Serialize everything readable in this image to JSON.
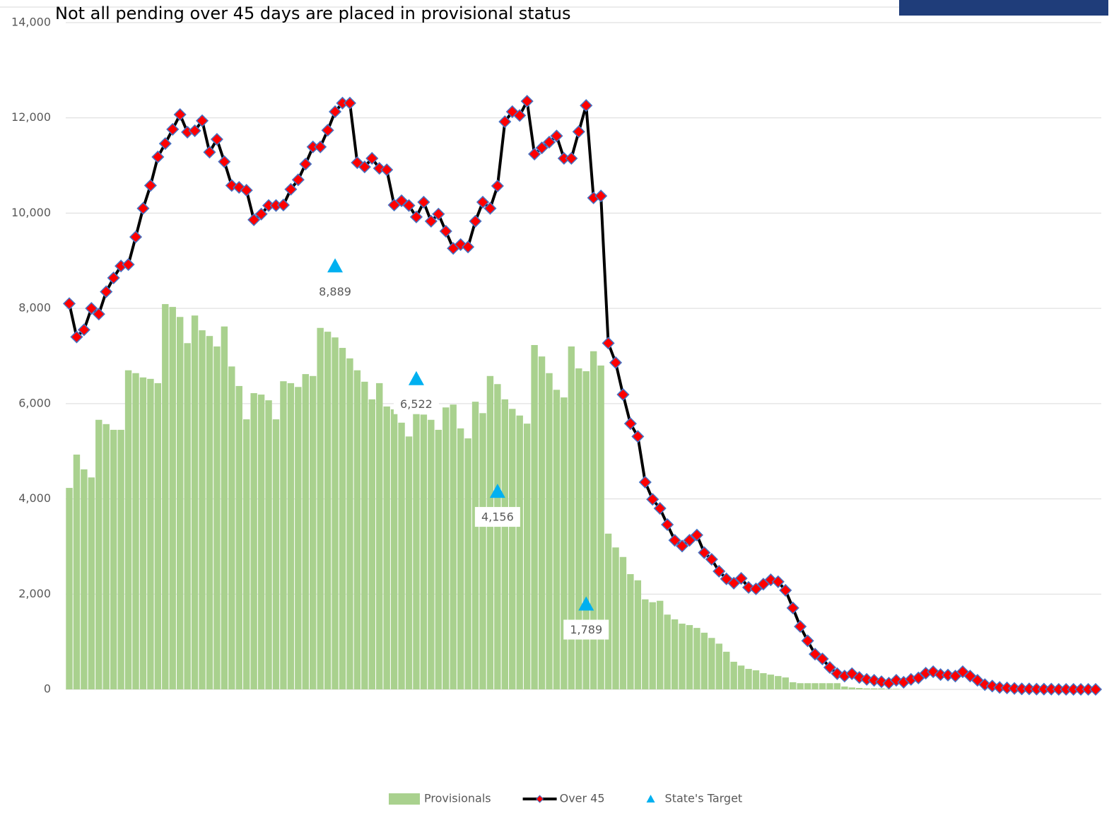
{
  "chart_data": {
    "type": "combo",
    "title": "Not all pending over 45 days are placed in provisional status",
    "categories": [
      null,
      null,
      null,
      null,
      null,
      null,
      null,
      null,
      null,
      null,
      null,
      null,
      null,
      null,
      null,
      null,
      null,
      null,
      null,
      null,
      null,
      null,
      null,
      null,
      null,
      null,
      null,
      null,
      null,
      null,
      null,
      null,
      null,
      null,
      null,
      null,
      null,
      null,
      null,
      null,
      null,
      null,
      null,
      null,
      null,
      null,
      null,
      null,
      null,
      null,
      null,
      null,
      null,
      null,
      null,
      null,
      null,
      null,
      null,
      null,
      null,
      null,
      null,
      null,
      null,
      null,
      null,
      null,
      null,
      null,
      null,
      null,
      null,
      null,
      null,
      null,
      null,
      null,
      null,
      null,
      null,
      null,
      null,
      null,
      null,
      null,
      null,
      null,
      null,
      null,
      null,
      null,
      null,
      null,
      null,
      null,
      null,
      null,
      null,
      null,
      null,
      null,
      null,
      null,
      null,
      null,
      null,
      null,
      null,
      null,
      null,
      null,
      null,
      null,
      null,
      null,
      null,
      null,
      null,
      null,
      null,
      null,
      null,
      null,
      null,
      null,
      null,
      null,
      null,
      null,
      null,
      null,
      null,
      null,
      null,
      null,
      null,
      null,
      null,
      null
    ],
    "ylim": [
      0,
      14000
    ],
    "yticks": [
      0,
      {
        "value": 2000,
        "label": "2,000"
      },
      {
        "value": 4000,
        "label": "4,000"
      },
      {
        "value": 6000,
        "label": "6,000"
      },
      {
        "value": 8000,
        "label": "8,000"
      },
      {
        "value": 10000,
        "label": "10,000"
      },
      {
        "value": 12000,
        "label": "12,000"
      },
      {
        "value": 14000,
        "label": "14,000"
      }
    ],
    "grid": true,
    "legend": "bottom",
    "series": [
      {
        "name": "Provisionals",
        "type": "bar",
        "color": "#a9d18e",
        "values": [
          4230,
          4930,
          4620,
          4450,
          5660,
          5570,
          5450,
          5450,
          6700,
          6640,
          6550,
          6520,
          6430,
          8090,
          8030,
          7820,
          7270,
          7850,
          7540,
          7420,
          7200,
          7620,
          6780,
          6370,
          5670,
          6220,
          6190,
          6070,
          5670,
          6470,
          6430,
          6350,
          6620,
          6580,
          7590,
          7510,
          7390,
          7170,
          6950,
          6700,
          6460,
          6090,
          6430,
          5940,
          5880,
          5600,
          5310,
          5860,
          5770,
          5660,
          5450,
          5920,
          5980,
          5480,
          5270,
          6040,
          5800,
          6580,
          6410,
          6090,
          5890,
          5750,
          5580,
          7230,
          6990,
          6640,
          6290,
          6130,
          7200,
          6740,
          6680,
          7100,
          6800,
          3270,
          2980,
          2780,
          2420,
          2290,
          1890,
          1830,
          1860,
          1570,
          1470,
          1380,
          1350,
          1290,
          1190,
          1080,
          960,
          790,
          580,
          500,
          430,
          400,
          340,
          310,
          280,
          250,
          150,
          130,
          130,
          130,
          130,
          130,
          130,
          60,
          40,
          30,
          20,
          20,
          20,
          10,
          10,
          0,
          0,
          0,
          0,
          0,
          0,
          0,
          0,
          0,
          0,
          0,
          0,
          0,
          0,
          0,
          0,
          0,
          0,
          0,
          0,
          0,
          0,
          0,
          0,
          0,
          0,
          0
        ]
      },
      {
        "name": "Over 45",
        "type": "line",
        "color": "#000000",
        "marker_color": "#ff0000",
        "marker_edge": "#4472c4",
        "values": [
          8100,
          7400,
          7550,
          8000,
          7880,
          8350,
          8640,
          8890,
          8920,
          9500,
          10100,
          10580,
          11180,
          11460,
          11760,
          12070,
          11700,
          11730,
          11940,
          11280,
          11550,
          11080,
          10580,
          10540,
          10480,
          9860,
          9980,
          10160,
          10160,
          10170,
          10500,
          10700,
          11030,
          11390,
          11390,
          11740,
          12130,
          12310,
          12310,
          11060,
          10970,
          11150,
          10940,
          10910,
          10170,
          10260,
          10160,
          9920,
          10230,
          9830,
          9980,
          9620,
          9260,
          9340,
          9290,
          9830,
          10230,
          10100,
          10570,
          11920,
          12130,
          12050,
          12350,
          11240,
          11370,
          11490,
          11620,
          11150,
          11150,
          11710,
          12260,
          10320,
          10360,
          7270,
          6860,
          6190,
          5580,
          5310,
          4350,
          3990,
          3800,
          3460,
          3130,
          3010,
          3130,
          3240,
          2870,
          2730,
          2480,
          2320,
          2230,
          2330,
          2140,
          2110,
          2210,
          2300,
          2260,
          2080,
          1710,
          1320,
          1020,
          740,
          640,
          460,
          330,
          280,
          330,
          250,
          210,
          190,
          160,
          130,
          190,
          150,
          210,
          240,
          340,
          370,
          310,
          300,
          280,
          370,
          280,
          190,
          100,
          70,
          40,
          30,
          20,
          10,
          10,
          5,
          5,
          5,
          0,
          0,
          0,
          0,
          0,
          0
        ]
      },
      {
        "name": "State's Target",
        "type": "scatter",
        "color": "#00b0f0",
        "values": [
          null,
          null,
          null,
          null,
          null,
          null,
          null,
          null,
          null,
          null,
          null,
          null,
          null,
          null,
          null,
          null,
          null,
          null,
          null,
          null,
          null,
          null,
          null,
          null,
          null,
          null,
          null,
          null,
          null,
          null,
          null,
          null,
          null,
          null,
          null,
          null,
          8889,
          null,
          null,
          null,
          null,
          null,
          null,
          null,
          null,
          null,
          null,
          6522,
          null,
          null,
          null,
          null,
          null,
          null,
          null,
          null,
          null,
          null,
          4156,
          null,
          null,
          null,
          null,
          null,
          null,
          null,
          null,
          null,
          null,
          null,
          1789,
          null,
          null,
          null,
          null,
          null,
          null,
          null,
          null,
          null,
          null,
          null,
          null,
          null,
          null,
          null,
          null,
          null,
          null,
          null,
          null,
          null,
          null,
          null,
          null,
          null,
          null,
          null,
          null,
          null,
          null,
          null,
          null,
          null,
          null,
          null,
          null,
          null,
          null,
          null,
          null,
          null,
          null,
          null,
          null,
          null,
          null,
          null,
          null,
          null,
          null,
          null,
          null,
          null,
          null,
          null,
          null,
          null,
          null,
          null,
          null,
          null,
          null,
          null,
          null,
          null,
          null,
          null,
          null,
          null
        ],
        "value_labels": [
          null,
          null,
          null,
          null,
          null,
          null,
          null,
          null,
          null,
          null,
          null,
          null,
          null,
          null,
          null,
          null,
          null,
          null,
          null,
          null,
          null,
          null,
          null,
          null,
          null,
          null,
          null,
          null,
          null,
          null,
          null,
          null,
          null,
          null,
          null,
          null,
          "8,889",
          null,
          null,
          null,
          null,
          null,
          null,
          null,
          null,
          null,
          null,
          "6,522",
          null,
          null,
          null,
          null,
          null,
          null,
          null,
          null,
          null,
          null,
          "4,156",
          null,
          null,
          null,
          null,
          null,
          null,
          null,
          null,
          null,
          null,
          null,
          "1,789",
          null,
          null,
          null,
          null,
          null,
          null,
          null,
          null,
          null,
          null,
          null,
          null,
          null,
          null,
          null,
          null,
          null,
          null,
          null,
          null,
          null,
          null,
          null,
          null,
          null,
          null,
          null,
          null,
          null,
          null,
          null,
          null,
          null,
          null,
          null,
          null,
          null,
          null,
          null,
          null,
          null,
          null,
          null,
          null,
          null,
          null,
          null,
          null,
          null,
          null,
          null,
          null,
          null,
          null,
          null,
          null,
          null,
          null,
          null,
          null,
          null,
          null,
          null,
          null,
          null,
          null,
          null,
          null,
          null
        ]
      }
    ]
  }
}
